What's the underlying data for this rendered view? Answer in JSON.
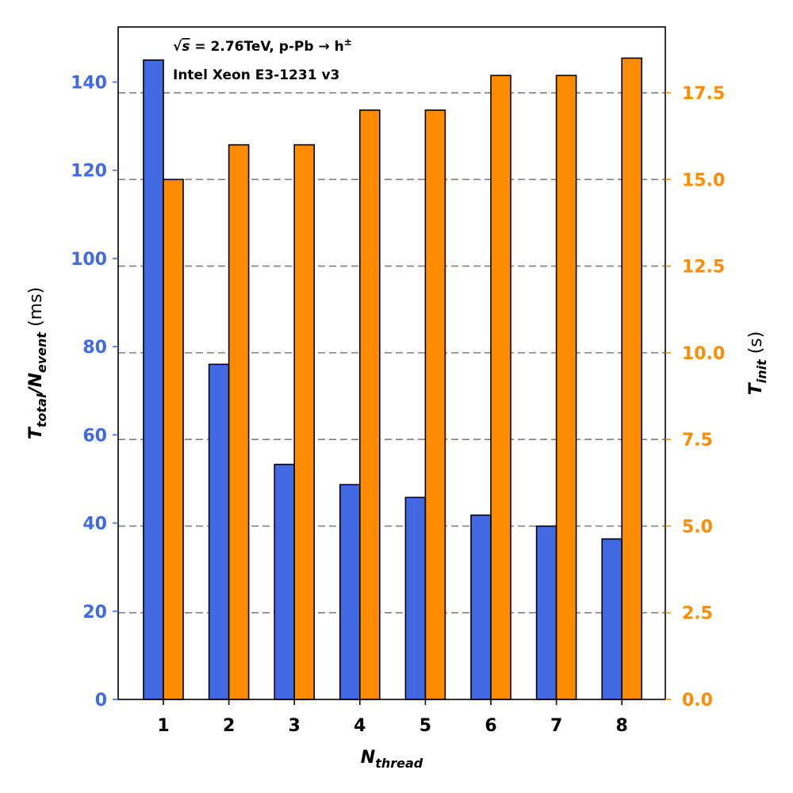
{
  "chart_data": {
    "type": "bar",
    "categories": [
      "1",
      "2",
      "3",
      "4",
      "5",
      "6",
      "7",
      "8"
    ],
    "xlabel": {
      "main": "N",
      "sub": "thread"
    },
    "series": [
      {
        "name": "T_total/N_event",
        "axis": "left",
        "color": "#4169e1",
        "values": [
          145,
          76,
          53.3,
          48.7,
          45.8,
          41.8,
          39.3,
          36.4
        ]
      },
      {
        "name": "T_init",
        "axis": "right",
        "color": "#ff8c00",
        "values": [
          15.0,
          16.0,
          16.0,
          17.0,
          17.0,
          18.0,
          18.0,
          18.5
        ]
      }
    ],
    "left_axis": {
      "ylim": [
        0,
        152.5
      ],
      "ticks": [
        0,
        20,
        40,
        60,
        80,
        100,
        120,
        140
      ],
      "tick_labels": [
        "0",
        "20",
        "40",
        "60",
        "80",
        "100",
        "120",
        "140"
      ],
      "color": "#4169e1",
      "label_main": "T",
      "label_sub1": "total",
      "label_slash": "/N",
      "label_sub2": "event",
      "label_unit": " (ms)"
    },
    "right_axis": {
      "ylim": [
        0,
        19.4
      ],
      "ticks": [
        0,
        2.5,
        5,
        7.5,
        10,
        12.5,
        15,
        17.5
      ],
      "tick_labels": [
        "0.0",
        "2.5",
        "5.0",
        "7.5",
        "10.0",
        "12.5",
        "15.0",
        "17.5"
      ],
      "color": "#ff8c00",
      "label_main": "T",
      "label_sub": "init",
      "label_unit": " (s)"
    },
    "grid": "horizontal dashed at right-axis ticks",
    "annotations": {
      "line1_sqrt": "√",
      "line1_s": "s",
      "line1_rest": " = 2.76TeV, p-Pb → h",
      "line1_sup": "±",
      "line2": "Intel Xeon E3-1231 v3"
    }
  }
}
